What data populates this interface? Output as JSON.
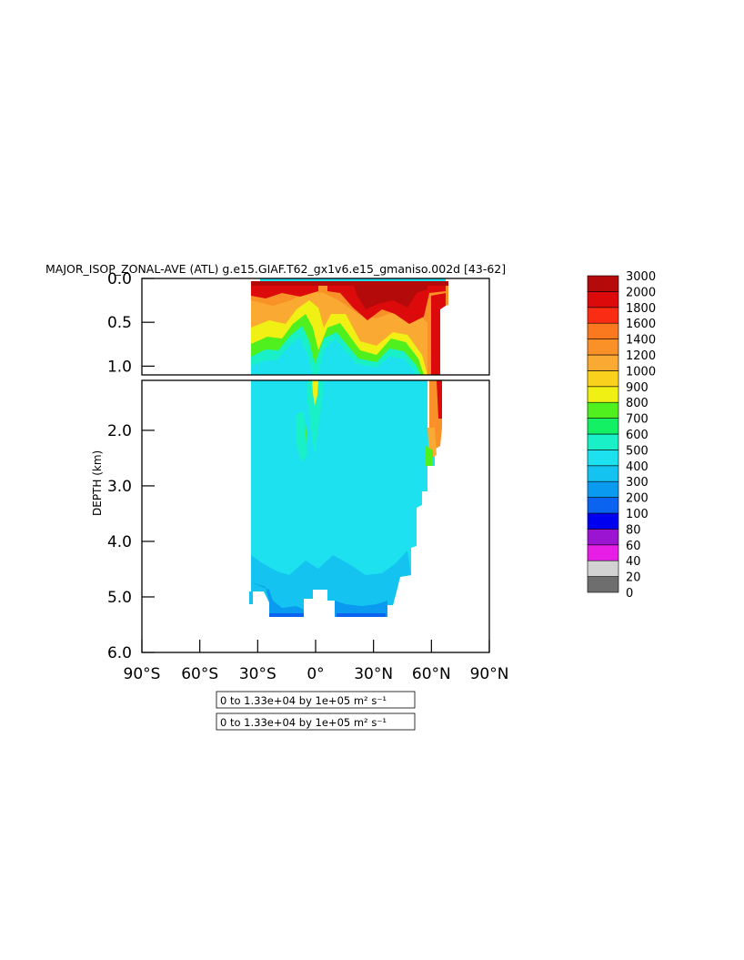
{
  "chart_data": {
    "type": "heatmap",
    "title": "MAJOR_ISOP_ZONAL-AVE (ATL) g.e15.GIAF.T62_gx1v6.e15_gmaniso.002d [43-62]",
    "ylabel": "DEPTH (km)",
    "xlabel": "",
    "x_ticks": [
      "90°S",
      "60°S",
      "30°S",
      "0°",
      "30°N",
      "60°N",
      "90°N"
    ],
    "x_range": [
      -90,
      90
    ],
    "upper_panel": {
      "ylim": [
        0.0,
        1.1
      ],
      "ticks": [
        "0.0",
        "0.5",
        "1.0"
      ],
      "tick_values": [
        0.0,
        0.5,
        1.0
      ]
    },
    "lower_panel": {
      "ylim": [
        1.1,
        6.0
      ],
      "ticks": [
        "2.0",
        "3.0",
        "4.0",
        "5.0",
        "6.0"
      ],
      "tick_values": [
        2.0,
        3.0,
        4.0,
        5.0,
        6.0
      ]
    },
    "colorbar": {
      "levels": [
        "0",
        "20",
        "40",
        "60",
        "80",
        "100",
        "200",
        "300",
        "400",
        "500",
        "600",
        "700",
        "800",
        "900",
        "1000",
        "1200",
        "1400",
        "1600",
        "1800",
        "2000",
        "3000"
      ],
      "colors": [
        "#6e6e6e",
        "#d2d2d2",
        "#e61ee6",
        "#9a14d2",
        "#0000f0",
        "#0a64f0",
        "#0a9bf0",
        "#14c3f0",
        "#1ee1f0",
        "#19f0c8",
        "#14f064",
        "#50f01e",
        "#f0f014",
        "#fad21e",
        "#faaa32",
        "#fa9128",
        "#fa781e",
        "#fa2d14",
        "#dc0a0a",
        "#b40a0a"
      ]
    },
    "fields": {
      "upper": [
        {
          "lat_range": [
            -34,
            68
          ],
          "depth_range": [
            0.0,
            0.08
          ],
          "value": 2500
        },
        {
          "lat_range": [
            -34,
            -2
          ],
          "depth_range": [
            0.08,
            0.6
          ],
          "value": 1300
        },
        {
          "lat_range": [
            12,
            56
          ],
          "depth_range": [
            0.08,
            0.5
          ],
          "value": 2200
        },
        {
          "lat_range": [
            58,
            66
          ],
          "depth_range": [
            0.05,
            1.1
          ],
          "value": 2200
        },
        {
          "lat_range": [
            -10,
            12
          ],
          "depth_range": [
            0.3,
            1.1
          ],
          "value": 450
        },
        {
          "lat_range": [
            18,
            52
          ],
          "depth_range": [
            0.7,
            1.1
          ],
          "value": 450
        }
      ],
      "lower": [
        {
          "lat_range": [
            -34,
            55
          ],
          "depth_range": [
            1.1,
            4.8
          ],
          "value": 450
        },
        {
          "lat_range": [
            -2,
            4
          ],
          "depth_range": [
            1.1,
            2.1
          ],
          "value": 850
        },
        {
          "lat_range": [
            -14,
            -12
          ],
          "depth_range": [
            2.0,
            2.6
          ],
          "value": 650
        },
        {
          "lat_range": [
            60,
            65
          ],
          "depth_range": [
            1.1,
            2.4
          ],
          "value": 1400
        },
        {
          "lat_range": [
            -34,
            50
          ],
          "depth_range": [
            4.3,
            5.4
          ],
          "value": 350
        },
        {
          "lat_range": [
            -28,
            -10
          ],
          "depth_range": [
            5.1,
            5.4
          ],
          "value": 250
        },
        {
          "lat_range": [
            10,
            38
          ],
          "depth_range": [
            5.1,
            5.4
          ],
          "value": 250
        }
      ]
    },
    "annotations": [
      "0 to 1.33e+04 by 1e+05 m² s⁻¹",
      "0 to 1.33e+04 by 1e+05 m² s⁻¹"
    ]
  }
}
